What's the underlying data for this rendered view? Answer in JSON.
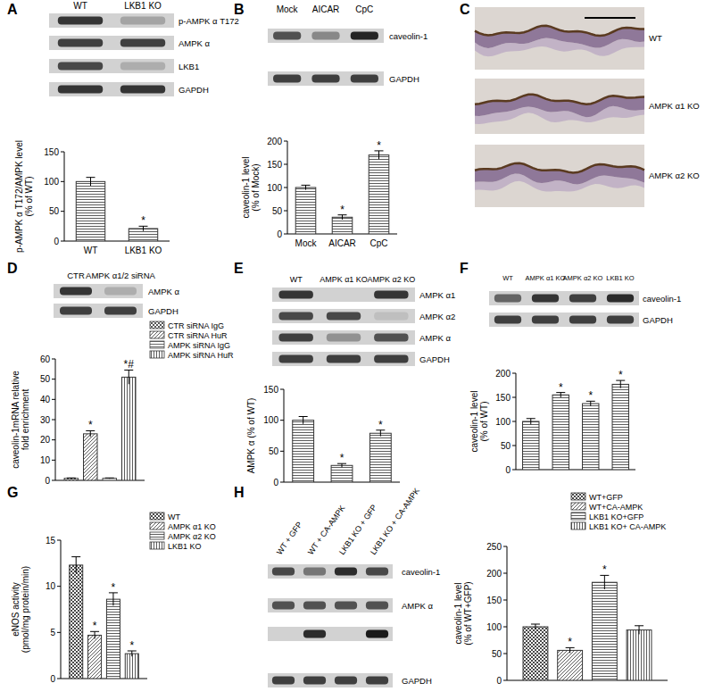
{
  "panel_letters": [
    "A",
    "B",
    "C",
    "D",
    "E",
    "F",
    "G",
    "H"
  ],
  "chart_data": [
    {
      "type": "bar",
      "y_label": "p-AMPK α T172/AMPK level (% of WT)",
      "categories": [
        "WT",
        "LKB1 KO"
      ],
      "values": [
        100,
        21
      ],
      "errors": [
        7,
        4
      ],
      "annotations": [
        null,
        "*"
      ],
      "color": "#333333",
      "ylim": [
        0,
        150
      ],
      "yticks": [
        0,
        50,
        100,
        150
      ]
    },
    {
      "type": "bar",
      "y_label": "caveolin-1 level (% of Mock)",
      "categories": [
        "Mock",
        "AICAR",
        "CpC"
      ],
      "values": [
        100,
        36,
        170
      ],
      "errors": [
        5,
        5,
        9
      ],
      "annotations": [
        null,
        "*",
        "*"
      ],
      "color": "#333333",
      "ylim": [
        0,
        200
      ],
      "yticks": [
        0,
        50,
        100,
        150,
        200
      ]
    },
    {
      "type": "bar",
      "y_label": "caveolin-1mRNA relative fold enrichment",
      "categories": [
        null
      ],
      "series": [
        {
          "name": "CTR siRNA IgG",
          "color": "#444444",
          "values": [
            1
          ],
          "errors": [
            0.2
          ],
          "annotations": [
            null
          ]
        },
        {
          "name": "CTR siRNA HuR",
          "color": "#333333",
          "values": [
            23
          ],
          "errors": [
            1.5
          ],
          "annotations": [
            "*"
          ]
        },
        {
          "name": "AMPK siRNA IgG",
          "color": "#444444",
          "values": [
            1
          ],
          "errors": [
            0.2
          ],
          "annotations": [
            null
          ]
        },
        {
          "name": "AMPK siRNA HuR",
          "color": "#333333",
          "values": [
            51
          ],
          "errors": [
            3.5
          ],
          "annotations": [
            "*#"
          ]
        }
      ],
      "legend": "upper right",
      "tick_labels": "y",
      "ylim": [
        0,
        60
      ],
      "yticks": [
        0,
        10,
        20,
        30,
        40,
        50,
        60
      ]
    },
    {
      "type": "bar",
      "y_label": "AMPK α (% of WT)",
      "categories": [
        null,
        null,
        null
      ],
      "values": [
        100,
        27,
        79
      ],
      "errors": [
        6,
        3,
        5
      ],
      "annotations": [
        null,
        "*",
        "*"
      ],
      "color": "#333333",
      "tick_labels": "y",
      "ylim": [
        0,
        150
      ],
      "yticks": [
        0,
        50,
        100,
        150
      ]
    },
    {
      "type": "bar",
      "y_label": "caveolin-1 level (% of WT)",
      "categories": [
        null,
        null,
        null,
        null
      ],
      "values": [
        100,
        155,
        137,
        177
      ],
      "errors": [
        6,
        5,
        5,
        8
      ],
      "annotations": [
        null,
        "*",
        "*",
        "*"
      ],
      "color": "#333333",
      "tick_labels": "y",
      "ylim": [
        0,
        200
      ],
      "yticks": [
        0,
        50,
        100,
        150,
        200
      ]
    },
    {
      "type": "bar",
      "y_label": "eNOS activity (pmol/mg protein/min)",
      "categories": [
        null
      ],
      "series": [
        {
          "name": "WT",
          "color": "#333333",
          "values": [
            12.3
          ],
          "errors": [
            0.9
          ],
          "annotations": [
            null
          ]
        },
        {
          "name": "AMPK α1 KO",
          "color": "#333333",
          "values": [
            4.7
          ],
          "errors": [
            0.4
          ],
          "annotations": [
            "*"
          ]
        },
        {
          "name": "AMPK α2 KO",
          "color": "#333333",
          "values": [
            8.6
          ],
          "errors": [
            0.7
          ],
          "annotations": [
            "*"
          ]
        },
        {
          "name": "LKB1 KO",
          "color": "#333333",
          "values": [
            2.7
          ],
          "errors": [
            0.3
          ],
          "annotations": [
            "*"
          ]
        }
      ],
      "legend": "upper right",
      "tick_labels": "y",
      "ylim": [
        0,
        15
      ],
      "yticks": [
        0,
        5,
        10,
        15
      ]
    },
    {
      "type": "bar",
      "y_label": "caveolin-1 level (% of WT+GFP)",
      "categories": [
        null
      ],
      "series": [
        {
          "name": "WT+GFP",
          "color": "#333333",
          "values": [
            100
          ],
          "errors": [
            5
          ],
          "annotations": [
            null
          ]
        },
        {
          "name": "WT+CA-AMPK",
          "color": "#333333",
          "values": [
            56
          ],
          "errors": [
            5
          ],
          "annotations": [
            "*"
          ]
        },
        {
          "name": "LKB1 KO+GFP",
          "color": "#333333",
          "values": [
            183
          ],
          "errors": [
            13
          ],
          "annotations": [
            "*"
          ]
        },
        {
          "name": "LKB1 KO+ CA-AMPK",
          "color": "#333333",
          "values": [
            94
          ],
          "errors": [
            8
          ],
          "annotations": [
            null
          ]
        }
      ],
      "legend": "upper right",
      "tick_labels": "y",
      "ylim": [
        0,
        250
      ],
      "yticks": [
        0,
        50,
        100,
        150,
        200,
        250
      ]
    }
  ],
  "blots": [
    {
      "columns": [
        "WT",
        "LKB1 KO"
      ],
      "rows": [
        {
          "label": "p-AMPK α T172",
          "bands": [
            0.85,
            0.25
          ]
        },
        {
          "label": "AMPK α",
          "bands": [
            0.8,
            0.8
          ]
        },
        {
          "label": "LKB1",
          "bands": [
            0.75,
            0.2
          ]
        },
        {
          "label": "GAPDH",
          "bands": [
            0.85,
            0.85
          ]
        }
      ]
    },
    {
      "columns": [
        "Mock",
        "AICAR",
        "CpC"
      ],
      "rows": [
        {
          "label": "caveolin-1",
          "bands": [
            0.7,
            0.4,
            0.95
          ]
        },
        {
          "label": "GAPDH",
          "bands": [
            0.8,
            0.8,
            0.8
          ]
        }
      ]
    },
    {
      "columns": [
        "CTR",
        "AMPK α1/2 siRNA"
      ],
      "rows": [
        {
          "label": "AMPK α",
          "bands": [
            0.85,
            0.2
          ]
        },
        {
          "label": "GAPDH",
          "bands": [
            0.8,
            0.8
          ]
        }
      ]
    },
    {
      "columns": [
        "WT",
        "AMPK α1 KO",
        "AMPK α2 KO"
      ],
      "rows": [
        {
          "label": "AMPK α1",
          "bands": [
            0.85,
            0,
            0.85
          ]
        },
        {
          "label": "AMPK α2",
          "bands": [
            0.75,
            0.75,
            0.1
          ]
        },
        {
          "label": "AMPK α",
          "bands": [
            0.8,
            0.35,
            0.7
          ]
        },
        {
          "label": "GAPDH",
          "bands": [
            0.8,
            0.8,
            0.8
          ]
        }
      ]
    },
    {
      "columns": [
        "WT",
        "AMPK α1 KO",
        "AMPK α2 KO",
        "LKB1 KO"
      ],
      "rows": [
        {
          "label": "caveolin-1",
          "bands": [
            0.6,
            0.85,
            0.8,
            0.9
          ]
        },
        {
          "label": "GAPDH",
          "bands": [
            0.8,
            0.8,
            0.8,
            0.8
          ]
        }
      ]
    },
    {
      "columns": [
        "WT + GFP",
        "WT + CA-AMPK",
        "LKB1 KO + GFP",
        "LKB1 KO + CA-AMPK"
      ],
      "rows": [
        {
          "label": "caveolin-1",
          "bands": [
            0.75,
            0.5,
            0.9,
            0.75
          ]
        },
        {
          "label": "AMPK α",
          "bands": [
            0.7,
            0.7,
            0.7,
            0.7
          ]
        },
        {
          "label": null,
          "bands": [
            0,
            0.9,
            0,
            1
          ]
        },
        {
          "label": "GAPDH",
          "bands": [
            0.8,
            0.8,
            0.8,
            0.8
          ]
        }
      ]
    }
  ],
  "histology": {
    "labels": [
      "WT",
      "AMPK α1 KO",
      "AMPK α2 KO"
    ]
  }
}
